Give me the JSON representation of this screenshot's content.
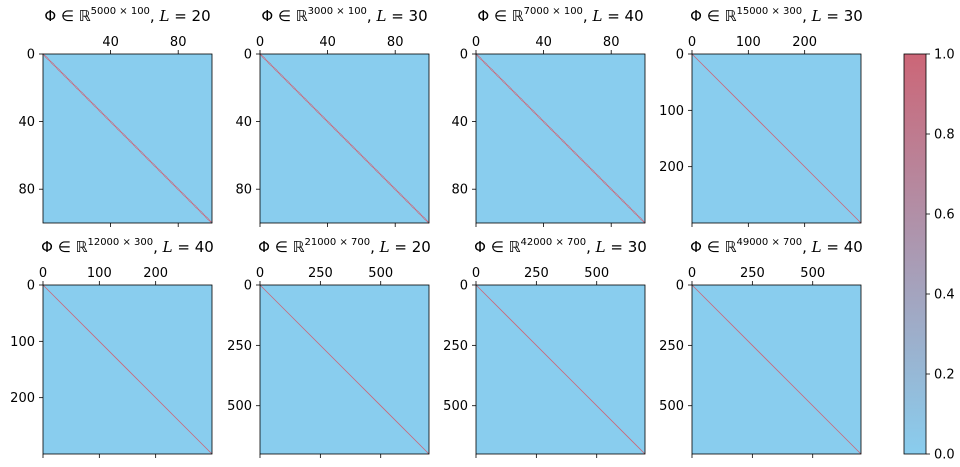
{
  "chart_data": [
    {
      "type": "heatmap",
      "title_base": "Φ ∈ ℝ",
      "title_sup": "5000 × 100",
      "title_tail": ", ",
      "title_var": "L",
      "title_eq": " = 20",
      "size": 100,
      "xticks": [
        40,
        80
      ],
      "yticks": [
        0,
        40,
        80
      ],
      "pattern": "identity"
    },
    {
      "type": "heatmap",
      "title_base": "Φ ∈ ℝ",
      "title_sup": "3000 × 100",
      "title_tail": ", ",
      "title_var": "L",
      "title_eq": " = 30",
      "size": 100,
      "xticks": [
        0,
        40,
        80
      ],
      "yticks": [
        0,
        40,
        80
      ],
      "pattern": "identity"
    },
    {
      "type": "heatmap",
      "title_base": "Φ ∈ ℝ",
      "title_sup": "7000 × 100",
      "title_tail": ", ",
      "title_var": "L",
      "title_eq": " = 40",
      "size": 100,
      "xticks": [
        0,
        40,
        80
      ],
      "yticks": [
        0,
        40,
        80
      ],
      "pattern": "identity"
    },
    {
      "type": "heatmap",
      "title_base": "Φ ∈ ℝ",
      "title_sup": "15000 × 300",
      "title_tail": ", ",
      "title_var": "L",
      "title_eq": " = 30",
      "size": 300,
      "xticks": [
        0,
        100,
        200
      ],
      "yticks": [
        0,
        100,
        200
      ],
      "pattern": "identity"
    },
    {
      "type": "heatmap",
      "title_base": "Φ ∈ ℝ",
      "title_sup": "12000 × 300",
      "title_tail": ", ",
      "title_var": "L",
      "title_eq": " = 40",
      "size": 300,
      "xticks": [
        0,
        100,
        200
      ],
      "yticks": [
        0,
        100,
        200
      ],
      "pattern": "identity"
    },
    {
      "type": "heatmap",
      "title_base": "Φ ∈ ℝ",
      "title_sup": "21000 × 700",
      "title_tail": ", ",
      "title_var": "L",
      "title_eq": " = 20",
      "size": 700,
      "xticks": [
        0,
        250,
        500
      ],
      "yticks": [
        0,
        250,
        500
      ],
      "pattern": "identity"
    },
    {
      "type": "heatmap",
      "title_base": "Φ ∈ ℝ",
      "title_sup": "42000 × 700",
      "title_tail": ", ",
      "title_var": "L",
      "title_eq": " = 30",
      "size": 700,
      "xticks": [
        0,
        250,
        500
      ],
      "yticks": [
        0,
        250,
        500
      ],
      "pattern": "identity"
    },
    {
      "type": "heatmap",
      "title_base": "Φ ∈ ℝ",
      "title_sup": "49000 × 700",
      "title_tail": ", ",
      "title_var": "L",
      "title_eq": " = 40",
      "size": 700,
      "xticks": [
        0,
        250,
        500
      ],
      "yticks": [
        0,
        250,
        500
      ],
      "pattern": "identity"
    }
  ],
  "colorbar": {
    "range": [
      0.0,
      1.0
    ],
    "ticks": [
      "0.0",
      "0.2",
      "0.4",
      "0.6",
      "0.8",
      "1.0"
    ],
    "color_low": "#89cdee",
    "color_high": "#cc6677"
  }
}
